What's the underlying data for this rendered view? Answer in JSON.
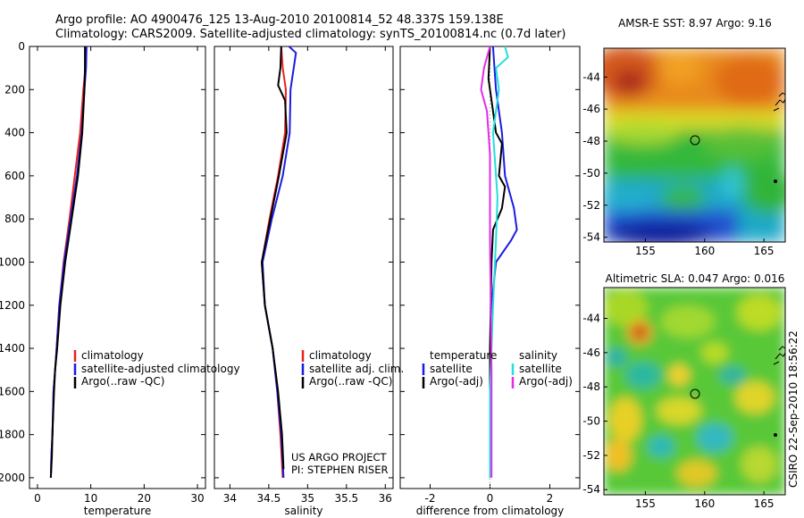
{
  "header": {
    "title_line1": "Argo profile: AO 4900476_125 13-Aug-2010 20100814_52 48.337S 159.138E",
    "title_line2": "Climatology: CARS2009. Satellite-adjusted climatology: synTS_20100814.nc (0.7d later)"
  },
  "footer": {
    "project_line1": "US ARGO PROJECT",
    "project_line2": "PI: STEPHEN RISER",
    "stamp": "CSIRO 22-Sep-2010 18:56:22"
  },
  "colors": {
    "climatology": "#e8221e",
    "satellite": "#1c1ce0",
    "argo": "#000000",
    "sat_salinity": "#22dede",
    "argo_adj_salinity": "#e22ce8"
  },
  "chart_data": [
    {
      "id": "temperature",
      "type": "line",
      "xlabel": "temperature",
      "ylabel": "",
      "xlim": [
        -1.5,
        31.5
      ],
      "ylim": [
        2050,
        0
      ],
      "xticks": [
        0,
        10,
        20,
        30
      ],
      "yticks": [
        0,
        200,
        400,
        600,
        800,
        1000,
        1200,
        1400,
        1600,
        1800,
        2000
      ],
      "legend": [
        "climatology",
        "satellite-adjusted climatology",
        "Argo(..raw -QC)"
      ],
      "series": [
        {
          "name": "climatology",
          "color": "#e8221e",
          "x": [
            9.1,
            9.0,
            8.6,
            8.0,
            7.0,
            6.0,
            4.9,
            4.1,
            3.6,
            3.3,
            3.0,
            2.8,
            2.6,
            2.5
          ],
          "y": [
            0,
            100,
            200,
            400,
            600,
            800,
            1000,
            1200,
            1400,
            1500,
            1600,
            1800,
            1900,
            2000
          ]
        },
        {
          "name": "satellite-adjusted climatology",
          "color": "#1c1ce0",
          "x": [
            9.2,
            9.1,
            8.8,
            8.3,
            7.4,
            6.2,
            5.0,
            4.1,
            3.6,
            3.3,
            3.0,
            2.8,
            2.6,
            2.5
          ],
          "y": [
            0,
            100,
            200,
            400,
            600,
            800,
            1000,
            1200,
            1400,
            1500,
            1600,
            1800,
            1900,
            2000
          ]
        },
        {
          "name": "Argo(..raw -QC)",
          "color": "#000000",
          "x": [
            8.9,
            8.9,
            8.8,
            8.4,
            7.6,
            6.4,
            5.2,
            4.3,
            3.7,
            3.3,
            3.1,
            2.8,
            2.7,
            2.5
          ],
          "y": [
            0,
            100,
            200,
            400,
            600,
            800,
            1000,
            1200,
            1400,
            1500,
            1600,
            1800,
            1900,
            2000
          ]
        }
      ]
    },
    {
      "id": "salinity",
      "type": "line",
      "xlabel": "salinity",
      "xlim": [
        33.8,
        36.1
      ],
      "ylim": [
        2050,
        0
      ],
      "xticks": [
        34,
        34.5,
        35,
        35.5,
        36
      ],
      "legend": [
        "climatology",
        "satellite adj. clim.",
        "Argo(..raw -QC)"
      ],
      "series": [
        {
          "name": "climatology",
          "color": "#e8221e",
          "x": [
            34.66,
            34.68,
            34.72,
            34.71,
            34.62,
            34.51,
            34.41,
            34.45,
            34.55,
            34.61,
            34.65,
            34.68
          ],
          "y": [
            0,
            100,
            200,
            400,
            600,
            800,
            1000,
            1200,
            1400,
            1600,
            1800,
            2000
          ]
        },
        {
          "name": "satellite adj. clim.",
          "color": "#1c1ce0",
          "x": [
            34.76,
            34.85,
            34.78,
            34.77,
            34.68,
            34.54,
            34.42,
            34.45,
            34.55,
            34.61,
            34.66,
            34.69
          ],
          "y": [
            0,
            30,
            200,
            400,
            600,
            800,
            1000,
            1200,
            1400,
            1600,
            1800,
            2000
          ]
        },
        {
          "name": "Argo(..raw -QC)",
          "color": "#000000",
          "x": [
            34.66,
            34.65,
            34.62,
            34.71,
            34.73,
            34.63,
            34.52,
            34.41,
            34.45,
            34.55,
            34.62,
            34.67,
            34.69
          ],
          "y": [
            0,
            100,
            180,
            250,
            400,
            600,
            800,
            1000,
            1200,
            1400,
            1600,
            1800,
            1960
          ]
        }
      ]
    },
    {
      "id": "difference",
      "type": "line",
      "xlabel": "difference from climatology",
      "xlim": [
        -3,
        3
      ],
      "ylim": [
        2050,
        0
      ],
      "xticks": [
        -2,
        0,
        2
      ],
      "legend_left_title": "temperature",
      "legend_right_title": "salinity",
      "legend": [
        "satellite",
        "Argo(-adj)",
        "satellite",
        "Argo(-adj)"
      ],
      "series": [
        {
          "name": "temperature satellite",
          "color": "#1c1ce0",
          "x": [
            0.1,
            0.15,
            0.2,
            0.3,
            0.4,
            0.5,
            0.8,
            0.9,
            0.7,
            0.2,
            0.05,
            0.0,
            0.0
          ],
          "y": [
            0,
            100,
            200,
            300,
            400,
            600,
            750,
            850,
            900,
            1000,
            1200,
            1600,
            2000
          ]
        },
        {
          "name": "temperature Argo(-adj)",
          "color": "#000000",
          "x": [
            0.0,
            -0.05,
            0.1,
            0.2,
            0.4,
            0.3,
            0.5,
            0.4,
            0.1,
            0.05,
            0.0,
            0.0
          ],
          "y": [
            0,
            150,
            300,
            400,
            450,
            600,
            650,
            750,
            850,
            1000,
            1400,
            2000
          ]
        },
        {
          "name": "salinity satellite",
          "color": "#22dede",
          "x": [
            0.5,
            0.6,
            0.2,
            0.3,
            0.1,
            0.25,
            0.2,
            0.1,
            0.0,
            0.0
          ],
          "y": [
            0,
            50,
            100,
            200,
            400,
            700,
            900,
            1200,
            1600,
            2000
          ]
        },
        {
          "name": "salinity Argo(-adj)",
          "color": "#e22ce8",
          "x": [
            0.0,
            -0.1,
            -0.2,
            -0.3,
            -0.1,
            0.0,
            0.0,
            0.05,
            0.05
          ],
          "y": [
            0,
            50,
            100,
            200,
            300,
            500,
            900,
            1500,
            2000
          ]
        }
      ]
    },
    {
      "id": "sst-map",
      "type": "heatmap",
      "title": "AMSR-E SST: 8.97  Argo: 9.16",
      "xticks": [
        155,
        160,
        165
      ],
      "yticks": [
        -44,
        -46,
        -48,
        -50,
        -52,
        -54
      ],
      "xlim": [
        151.5,
        166.8
      ],
      "ylim": [
        -54.3,
        -42.2
      ],
      "marker": {
        "lon": 159.138,
        "lat": -48.337
      }
    },
    {
      "id": "sla-map",
      "type": "heatmap",
      "title": "Altimetric SLA: 0.047  Argo: 0.016",
      "xticks": [
        155,
        160,
        165
      ],
      "yticks": [
        -44,
        -46,
        -48,
        -50,
        -52,
        -54
      ],
      "xlim": [
        151.5,
        166.8
      ],
      "ylim": [
        -54.3,
        -42.2
      ],
      "marker": {
        "lon": 159.138,
        "lat": -48.337
      }
    }
  ]
}
